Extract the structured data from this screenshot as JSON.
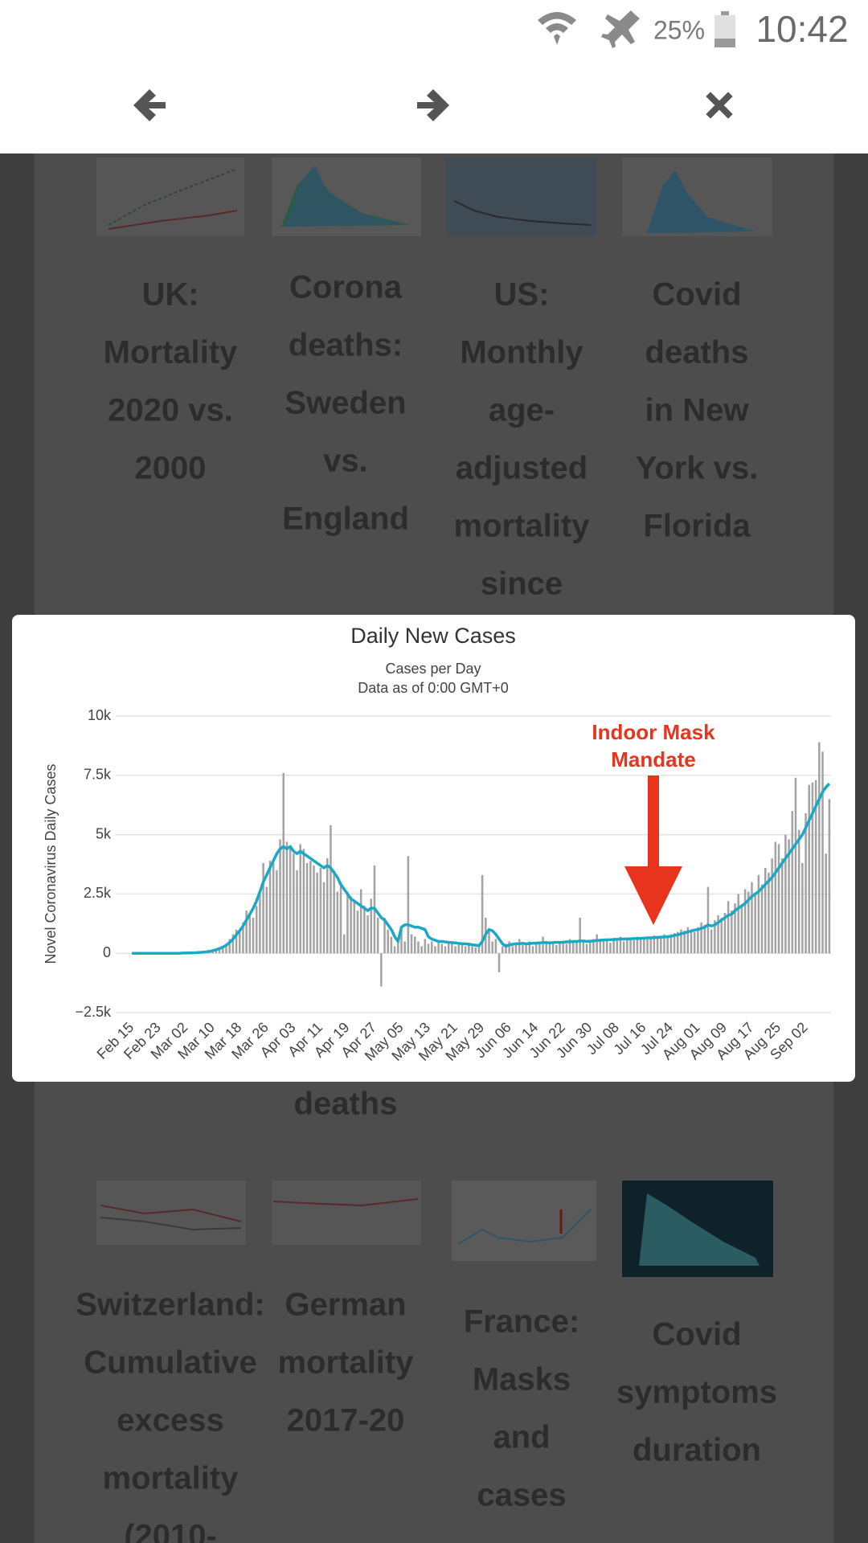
{
  "status_bar": {
    "battery": "25%",
    "time": "10:42"
  },
  "gallery": {
    "items": [
      {
        "lines": [
          "UK:",
          "Mortality",
          "2020 vs.",
          "2000"
        ]
      },
      {
        "lines": [
          "Corona",
          "deaths:",
          "Sweden",
          "vs.",
          "England"
        ],
        "tail": "deaths"
      },
      {
        "lines": [
          "US:",
          "Monthly",
          "age-",
          "adjusted",
          "mortality",
          "since"
        ]
      },
      {
        "lines": [
          "Covid",
          "deaths",
          "in New",
          "York vs.",
          "Florida"
        ]
      },
      {
        "lines": [
          "Switzerland:",
          "Cumulative",
          "excess",
          "mortality",
          "(2010-"
        ]
      },
      {
        "lines": [
          "German",
          "mortality",
          "2017-20"
        ]
      },
      {
        "lines": [
          "France:",
          "Masks",
          "and",
          "cases"
        ]
      },
      {
        "lines": [
          "Covid",
          "symptoms",
          "duration"
        ]
      }
    ]
  },
  "chart_data": {
    "type": "bar",
    "title": "Daily New Cases",
    "subtitle": [
      "Cases per Day",
      "Data as of 0:00 GMT+0"
    ],
    "y_label": "Novel Coronavirus Daily Cases",
    "annotation": [
      "Indoor Mask",
      "Mandate"
    ],
    "annotation_color": "#e8341c",
    "categories": [
      "Feb 15",
      null,
      null,
      null,
      null,
      null,
      null,
      null,
      "Feb 23",
      null,
      null,
      null,
      null,
      null,
      null,
      null,
      "Mar 02",
      null,
      null,
      null,
      null,
      null,
      null,
      null,
      "Mar 10",
      null,
      null,
      null,
      null,
      null,
      null,
      null,
      "Mar 18",
      null,
      null,
      null,
      null,
      null,
      null,
      null,
      "Mar 26",
      null,
      null,
      null,
      null,
      null,
      null,
      null,
      "Apr 03",
      null,
      null,
      null,
      null,
      null,
      null,
      null,
      "Apr 11",
      null,
      null,
      null,
      null,
      null,
      null,
      null,
      "Apr 19",
      null,
      null,
      null,
      null,
      null,
      null,
      null,
      "Apr 27",
      null,
      null,
      null,
      null,
      null,
      null,
      null,
      "May 05",
      null,
      null,
      null,
      null,
      null,
      null,
      null,
      "May 13",
      null,
      null,
      null,
      null,
      null,
      null,
      null,
      "May 21",
      null,
      null,
      null,
      null,
      null,
      null,
      null,
      "May 29",
      null,
      null,
      null,
      null,
      null,
      null,
      null,
      "Jun 06",
      null,
      null,
      null,
      null,
      null,
      null,
      null,
      "Jun 14",
      null,
      null,
      null,
      null,
      null,
      null,
      null,
      "Jun 22",
      null,
      null,
      null,
      null,
      null,
      null,
      null,
      "Jun 30",
      null,
      null,
      null,
      null,
      null,
      null,
      null,
      "Jul 08",
      null,
      null,
      null,
      null,
      null,
      null,
      null,
      "Jul 16",
      null,
      null,
      null,
      null,
      null,
      null,
      null,
      "Jul 24",
      null,
      null,
      null,
      null,
      null,
      null,
      null,
      "Aug 01",
      null,
      null,
      null,
      null,
      null,
      null,
      null,
      "Aug 09",
      null,
      null,
      null,
      null,
      null,
      null,
      null,
      "Aug 17",
      null,
      null,
      null,
      null,
      null,
      null,
      null,
      "Aug 25",
      null,
      null,
      null,
      null,
      null,
      null,
      null,
      "Sep 02",
      null,
      null,
      null,
      null,
      null,
      null,
      null
    ],
    "series": [
      {
        "type": "bar",
        "color": "#a3a3a3",
        "values": [
          0,
          0,
          0,
          0,
          0,
          0,
          0,
          0,
          0,
          0,
          0,
          0,
          0,
          0,
          0,
          0,
          10,
          20,
          10,
          30,
          50,
          60,
          80,
          100,
          150,
          200,
          250,
          300,
          400,
          600,
          800,
          1000,
          900,
          1300,
          1800,
          1600,
          1500,
          2000,
          2500,
          3800,
          2800,
          3900,
          3800,
          3500,
          4800,
          7600,
          4700,
          4500,
          4200,
          3500,
          4600,
          4400,
          3800,
          3900,
          3700,
          3400,
          3600,
          3000,
          4000,
          5400,
          3500,
          2600,
          3000,
          800,
          2600,
          2400,
          2200,
          1800,
          2700,
          2000,
          1600,
          2300,
          3700,
          1500,
          -1400,
          1500,
          1000,
          700,
          300,
          600,
          1000,
          500,
          4100,
          800,
          700,
          500,
          300,
          600,
          400,
          500,
          300,
          500,
          400,
          300,
          500,
          400,
          300,
          400,
          350,
          300,
          450,
          300,
          250,
          400,
          3300,
          1500,
          1000,
          500,
          600,
          -800,
          300,
          400,
          500,
          300,
          400,
          600,
          350,
          400,
          500,
          300,
          400,
          500,
          700,
          450,
          400,
          500,
          350,
          450,
          500,
          400,
          600,
          450,
          500,
          1500,
          500,
          400,
          500,
          600,
          800,
          550,
          500,
          600,
          450,
          650,
          600,
          700,
          500,
          650,
          600,
          550,
          700,
          600,
          650,
          700,
          600,
          750,
          650,
          700,
          800,
          700,
          800,
          850,
          900,
          1000,
          950,
          1100,
          1000,
          900,
          1100,
          1300,
          1200,
          2800,
          1000,
          1400,
          1600,
          1500,
          1700,
          2200,
          1800,
          2100,
          2500,
          2000,
          2700,
          2600,
          3000,
          2500,
          3300,
          2900,
          3600,
          3400,
          4000,
          4700,
          4600,
          4000,
          5000,
          4800,
          6000,
          7400,
          5200,
          3800,
          5900,
          7100,
          7200,
          7300,
          8900,
          8500,
          4200,
          6500
        ]
      },
      {
        "type": "line",
        "color": "#1ba8c6",
        "values": [
          0,
          0,
          0,
          0,
          0,
          0,
          0,
          0,
          0,
          0,
          0,
          0,
          0,
          0,
          0,
          10,
          10,
          15,
          20,
          25,
          35,
          45,
          60,
          80,
          110,
          150,
          200,
          260,
          340,
          450,
          600,
          780,
          950,
          1150,
          1400,
          1650,
          1900,
          2200,
          2600,
          3000,
          3300,
          3600,
          3900,
          4200,
          4400,
          4500,
          4400,
          4500,
          4300,
          4200,
          4300,
          4200,
          4100,
          4000,
          3900,
          3800,
          3700,
          3600,
          3700,
          3600,
          3400,
          3200,
          2900,
          2700,
          2500,
          2300,
          2200,
          2100,
          2000,
          1900,
          1800,
          1900,
          1900,
          1700,
          1500,
          1400,
          1200,
          1000,
          700,
          500,
          1100,
          1200,
          1200,
          1150,
          1100,
          1100,
          1050,
          1000,
          700,
          600,
          550,
          500,
          500,
          480,
          460,
          450,
          440,
          420,
          400,
          400,
          380,
          360,
          340,
          320,
          500,
          800,
          1000,
          950,
          800,
          600,
          400,
          300,
          350,
          380,
          400,
          400,
          420,
          400,
          410,
          420,
          430,
          440,
          450,
          450,
          440,
          450,
          460,
          460,
          470,
          480,
          480,
          500,
          500,
          520,
          520,
          500,
          510,
          520,
          540,
          550,
          560,
          570,
          570,
          580,
          590,
          600,
          600,
          610,
          610,
          620,
          620,
          630,
          640,
          650,
          650,
          660,
          670,
          680,
          690,
          700,
          720,
          750,
          780,
          820,
          860,
          900,
          940,
          980,
          1000,
          1050,
          1100,
          1200,
          1150,
          1200,
          1300,
          1400,
          1500,
          1600,
          1650,
          1800,
          1900,
          2000,
          2100,
          2250,
          2400,
          2500,
          2600,
          2750,
          2900,
          3050,
          3200,
          3400,
          3600,
          3800,
          4000,
          4200,
          4400,
          4600,
          4800,
          5000,
          5300,
          5600,
          5900,
          6200,
          6500,
          6800,
          7000,
          7150
        ]
      }
    ],
    "ylim": [
      -2500,
      10000
    ],
    "yticks": [
      {
        "value": -2500,
        "label": "−2.5k"
      },
      0,
      {
        "value": 2500,
        "label": "2.5k"
      },
      {
        "value": 5000,
        "label": "5k"
      },
      {
        "value": 7500,
        "label": "7.5k"
      },
      {
        "value": 10000,
        "label": "10k"
      }
    ],
    "grid": true
  }
}
